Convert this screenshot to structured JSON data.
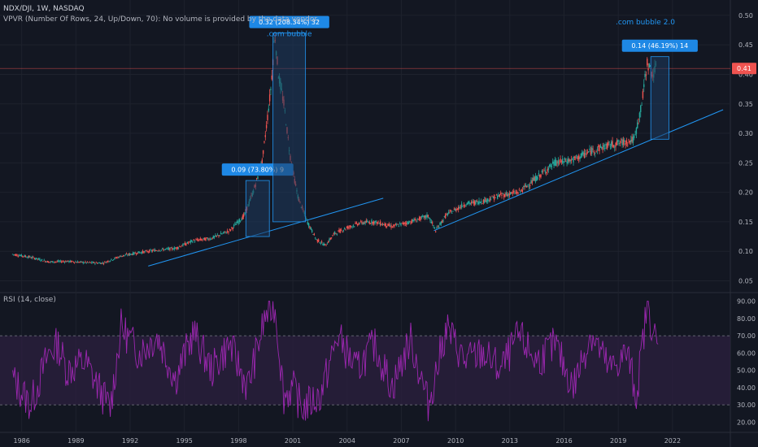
{
  "header": {
    "symbol": "NDX/DJI, 1W, NASDAQ",
    "indicator": "VPVR (Number Of Rows, 24, Up/Down, 70): No volume is provided by the data vendor.",
    "rsi_label": "RSI (14, close)"
  },
  "colors": {
    "background": "#131722",
    "grid": "#1e222d",
    "up": "#26a69a",
    "down": "#ef5350",
    "trendline": "#2196f3",
    "measure_fill": "#1e3a5f",
    "measure_label": "#1e88e5",
    "price_tag": "#ef5350",
    "rsi_line": "#9c27b0",
    "rsi_band": "#2a1f3d"
  },
  "chart_data": [
    {
      "type": "candlestick",
      "title": "NDX/DJI, 1W, NASDAQ",
      "x_ticks": [
        "1986",
        "1989",
        "1992",
        "1995",
        "1998",
        "2001",
        "2004",
        "2007",
        "2010",
        "2013",
        "2016",
        "2019",
        "2022"
      ],
      "x_tick_years": [
        1986,
        1989,
        1992,
        1995,
        1998,
        2001,
        2004,
        2007,
        2010,
        2013,
        2016,
        2019,
        2022
      ],
      "xlim": [
        1984.8,
        2025.2
      ],
      "y_ticks": [
        "0.50",
        "0.45",
        "0.40",
        "0.35",
        "0.30",
        "0.25",
        "0.20",
        "0.15",
        "0.10",
        "0.05"
      ],
      "y_tick_values": [
        0.5,
        0.45,
        0.4,
        0.35,
        0.3,
        0.25,
        0.2,
        0.15,
        0.1,
        0.05
      ],
      "ylim": [
        0.03,
        0.515
      ],
      "last_price": "0.41",
      "last_price_value": 0.41,
      "series": [
        {
          "x": [
            1985.5,
            1986.5,
            1987.5,
            1988.5,
            1989.5,
            1990.5,
            1991.5,
            1992.5,
            1993.5,
            1994.5,
            1995.5,
            1996.5,
            1997.5,
            1998.3,
            1998.8,
            1999.3,
            1999.8,
            2000.0,
            2000.2,
            2000.5,
            2000.9,
            2001.3,
            2001.8,
            2002.3,
            2002.8,
            2003.3,
            2004.0,
            2004.7,
            2005.5,
            2006.5,
            2007.5,
            2008.5,
            2008.9,
            2009.5,
            2010.5,
            2011.5,
            2012.5,
            2013.5,
            2014.5,
            2015.5,
            2016.5,
            2017.5,
            2018.5,
            2019.3,
            2019.9,
            2020.3,
            2020.6,
            2020.9,
            2021.1
          ],
          "y": [
            0.095,
            0.09,
            0.082,
            0.083,
            0.081,
            0.08,
            0.092,
            0.098,
            0.102,
            0.105,
            0.118,
            0.122,
            0.135,
            0.16,
            0.2,
            0.25,
            0.38,
            0.47,
            0.4,
            0.35,
            0.25,
            0.19,
            0.15,
            0.12,
            0.11,
            0.13,
            0.14,
            0.148,
            0.15,
            0.142,
            0.15,
            0.16,
            0.135,
            0.162,
            0.18,
            0.185,
            0.195,
            0.2,
            0.225,
            0.25,
            0.255,
            0.27,
            0.28,
            0.285,
            0.29,
            0.35,
            0.42,
            0.4,
            0.41
          ]
        }
      ],
      "trendlines": [
        {
          "x": [
            1993.0,
            2006.0
          ],
          "y": [
            0.075,
            0.19
          ]
        },
        {
          "x": [
            2008.8,
            2024.8
          ],
          "y": [
            0.135,
            0.34
          ]
        }
      ],
      "measure_boxes": [
        {
          "label": "0.09 (73.80%) 9",
          "x": [
            1998.4,
            1999.7
          ],
          "y": [
            0.125,
            0.22
          ]
        },
        {
          "label": "0.32 (208.34%) 32",
          "x": [
            1999.9,
            2001.7
          ],
          "y": [
            0.15,
            0.47
          ]
        },
        {
          "label": "0.14 (46.19%) 14",
          "x": [
            2020.8,
            2021.8
          ],
          "y": [
            0.29,
            0.43
          ]
        }
      ],
      "annotations": [
        {
          "text": ".com bubble",
          "x": 2000.8,
          "y": 0.465
        },
        {
          "text": ".com bubble 2.0",
          "x": 2020.5,
          "y": 0.485
        }
      ]
    },
    {
      "type": "line",
      "title": "RSI (14, close)",
      "y_ticks": [
        "90.00",
        "80.00",
        "70.00",
        "60.00",
        "50.00",
        "40.00",
        "30.00",
        "20.00"
      ],
      "y_tick_values": [
        90,
        80,
        70,
        60,
        50,
        40,
        30,
        20
      ],
      "ylim": [
        15,
        95
      ],
      "band": [
        30,
        70
      ],
      "series": [
        {
          "name": "RSI (14, close)",
          "x": [
            1985.5,
            1986.5,
            1987.5,
            1988.0,
            1988.5,
            1989.5,
            1990.5,
            1990.9,
            1991.5,
            1992.5,
            1993.5,
            1994.5,
            1995.5,
            1996.5,
            1997.5,
            1998.5,
            1999.5,
            2000.0,
            2000.5,
            2001.0,
            2001.5,
            2002.5,
            2003.5,
            2004.5,
            2005.5,
            2006.5,
            2007.5,
            2008.5,
            2009.5,
            2010.5,
            2011.5,
            2012.5,
            2013.5,
            2014.5,
            2015.5,
            2016.5,
            2017.5,
            2018.5,
            2019.5,
            2020.0,
            2020.6,
            2021.0,
            2021.2
          ],
          "y": [
            45,
            30,
            60,
            65,
            50,
            55,
            35,
            28,
            75,
            60,
            70,
            45,
            72,
            50,
            65,
            40,
            82,
            88,
            35,
            40,
            28,
            35,
            70,
            50,
            65,
            40,
            68,
            30,
            75,
            55,
            60,
            50,
            70,
            55,
            65,
            40,
            72,
            50,
            60,
            35,
            88,
            70,
            60
          ]
        }
      ]
    }
  ]
}
